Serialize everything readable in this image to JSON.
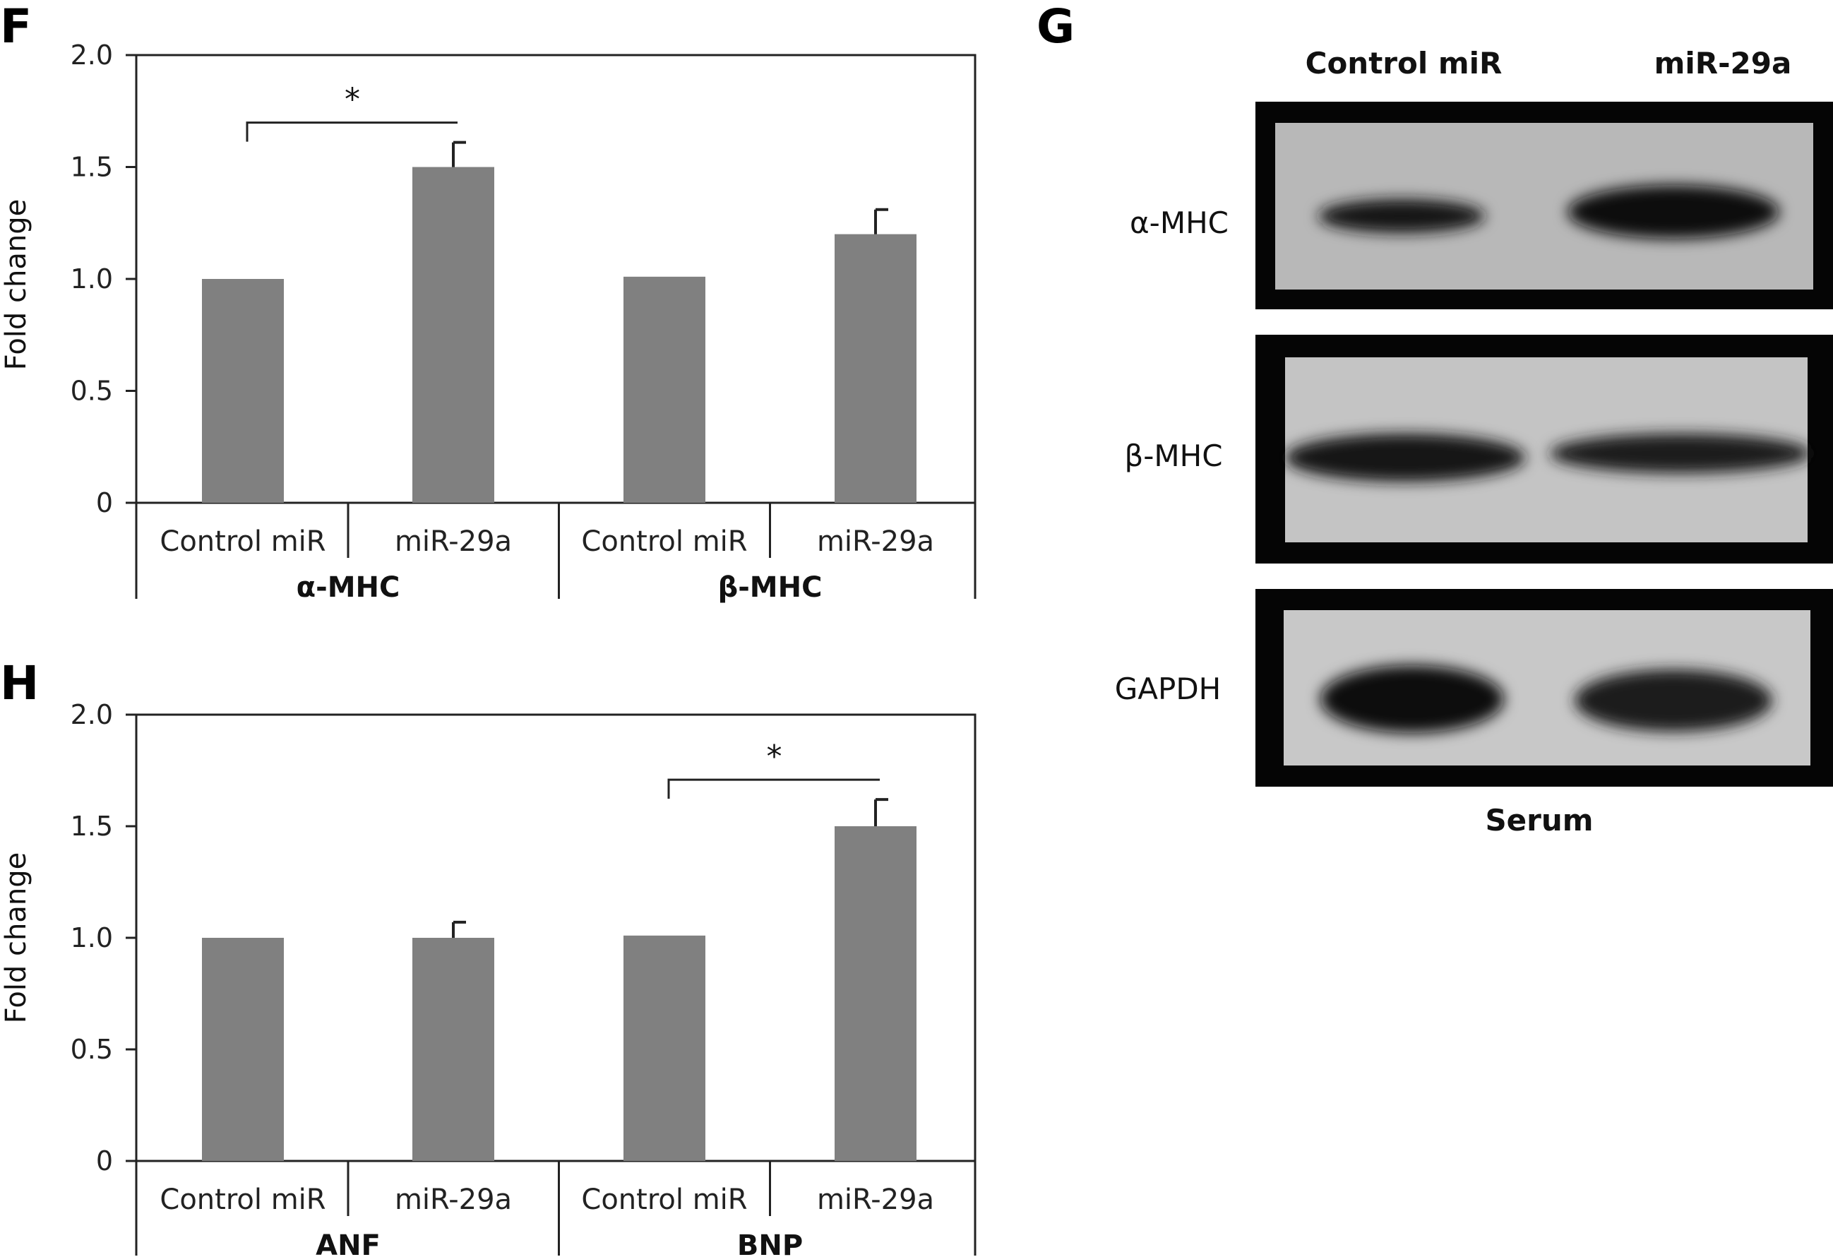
{
  "panel_labels": {
    "F": "F",
    "G": "G",
    "H": "H"
  },
  "bar_color": "#808080",
  "chart_data": [
    {
      "panel": "F",
      "type": "bar",
      "ylabel": "Fold change",
      "ylim": [
        0,
        2.0
      ],
      "yticks": [
        "0",
        "0.5",
        "1.0",
        "1.5",
        "2.0"
      ],
      "categories": [
        "Control miR",
        "miR-29a",
        "Control miR",
        "miR-29a"
      ],
      "groups": [
        "α-MHC",
        "β-MHC"
      ],
      "values": [
        1.0,
        1.5,
        1.01,
        1.2
      ],
      "errors": [
        0,
        0.11,
        0,
        0.11
      ],
      "significance": [
        {
          "from": 0,
          "to": 1,
          "label": "*"
        }
      ]
    },
    {
      "panel": "H",
      "type": "bar",
      "ylabel": "Fold change",
      "ylim": [
        0,
        2.0
      ],
      "yticks": [
        "0",
        "0.5",
        "1.0",
        "1.5",
        "2.0"
      ],
      "categories": [
        "Control miR",
        "miR-29a",
        "Control miR",
        "miR-29a"
      ],
      "groups": [
        "ANF",
        "BNP"
      ],
      "values": [
        1.0,
        1.0,
        1.01,
        1.5
      ],
      "errors": [
        0,
        0.07,
        0,
        0.12
      ],
      "significance": [
        {
          "from": 2,
          "to": 3,
          "label": "*"
        }
      ]
    }
  ],
  "blot": {
    "panel": "G",
    "column_headers": [
      "Control miR",
      "miR-29a"
    ],
    "rows": [
      "α-MHC",
      "β-MHC",
      "GAPDH"
    ],
    "footer": "Serum"
  }
}
